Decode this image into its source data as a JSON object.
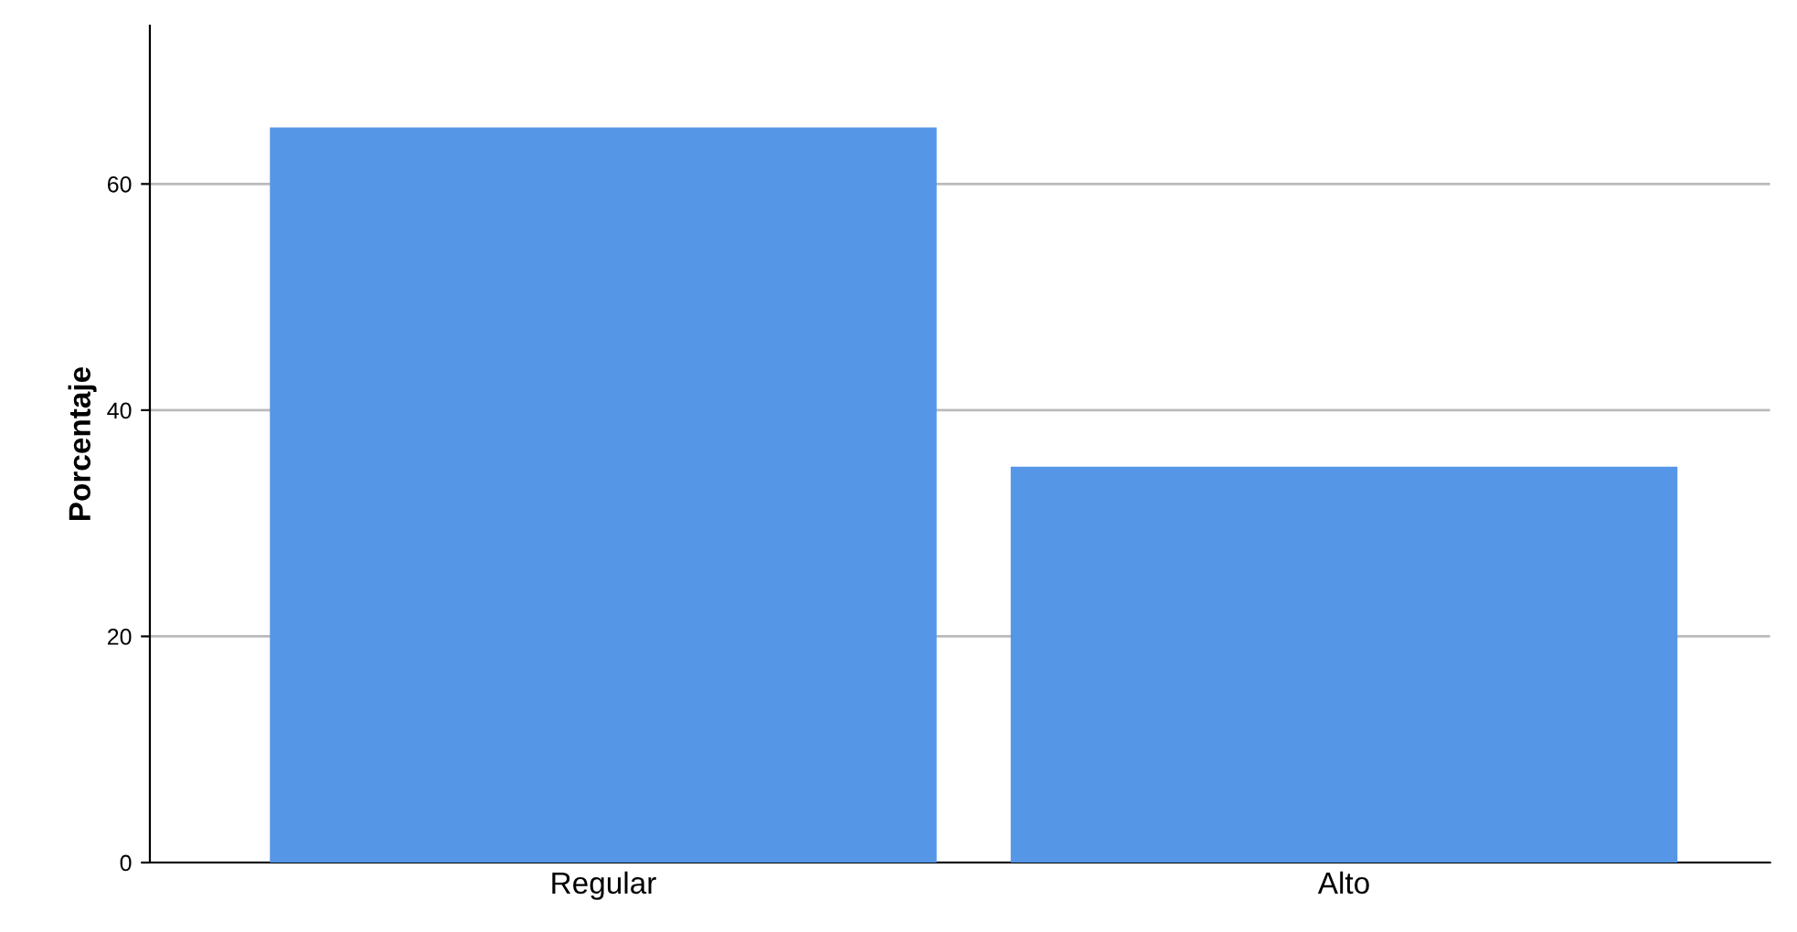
{
  "chart_data": {
    "type": "bar",
    "ylabel": "Porcentaje",
    "categories": [
      "Regular",
      "Alto"
    ],
    "values": [
      65,
      35
    ],
    "color": "#5596e6",
    "ylim": [
      0,
      74
    ],
    "yticks": [
      0,
      20,
      40,
      60
    ],
    "grid": "y"
  }
}
